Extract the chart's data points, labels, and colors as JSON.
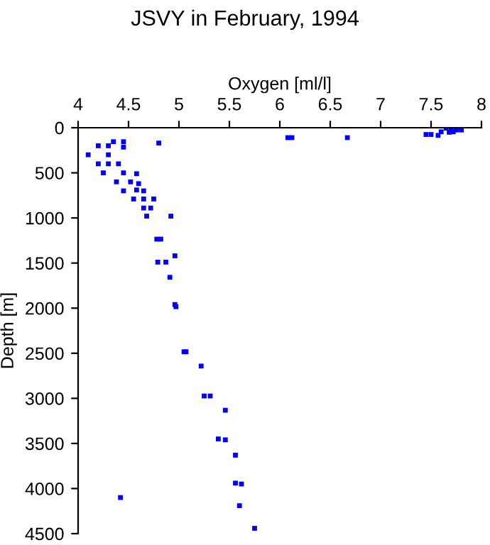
{
  "chart_data": {
    "type": "scatter",
    "title": "JSVY in February, 1994",
    "xlabel": "Oxygen [ml/l]",
    "ylabel": "Depth [m]",
    "series": [
      {
        "color": "#0000ff",
        "x": [
          7.65,
          7.7,
          7.75,
          7.8,
          7.8,
          7.72,
          7.68,
          7.6,
          7.57,
          7.45,
          7.5,
          6.08,
          6.12,
          6.67,
          4.45,
          4.35,
          4.8,
          4.2,
          4.3,
          4.45,
          4.1,
          4.3,
          4.2,
          4.3,
          4.4,
          4.25,
          4.45,
          4.58,
          4.38,
          4.52,
          4.6,
          4.45,
          4.58,
          4.65,
          4.55,
          4.65,
          4.75,
          4.65,
          4.72,
          4.68,
          4.92,
          4.78,
          4.82,
          4.96,
          4.79,
          4.87,
          4.91,
          4.96,
          4.97,
          5.05,
          5.07,
          5.22,
          5.25,
          5.31,
          5.46,
          5.39,
          5.46,
          5.56,
          5.56,
          5.62,
          5.6,
          5.75,
          4.42
        ],
        "values": [
          5,
          20,
          25,
          15,
          25,
          45,
          50,
          45,
          85,
          75,
          75,
          110,
          110,
          110,
          155,
          155,
          170,
          200,
          200,
          215,
          300,
          300,
          400,
          400,
          400,
          500,
          500,
          510,
          600,
          600,
          620,
          700,
          690,
          700,
          790,
          790,
          790,
          890,
          890,
          980,
          980,
          1235,
          1235,
          1420,
          1490,
          1490,
          1658,
          1960,
          1984,
          2484,
          2484,
          2642,
          2974,
          2974,
          3132,
          3450,
          3460,
          3630,
          3940,
          3950,
          4190,
          4441,
          4100
        ]
      }
    ],
    "xlim": [
      4,
      8
    ],
    "xticks": [
      4,
      4.5,
      5,
      5.5,
      6,
      6.5,
      7,
      7.5,
      8
    ],
    "ylim": [
      4500,
      0
    ],
    "yticks": [
      0,
      500,
      1000,
      1500,
      2000,
      2500,
      3000,
      3500,
      4000,
      4500
    ],
    "grid": false,
    "marker": "square"
  }
}
